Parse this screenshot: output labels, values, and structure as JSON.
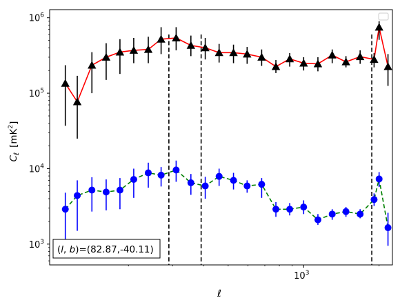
{
  "chart_data": {
    "type": "scatter",
    "xscale": "log",
    "yscale": "log",
    "xlim": [
      97,
      2260
    ],
    "ylim": [
      530,
      1280000
    ],
    "xlabel": "ℓ",
    "ylabel": "C_ℓ  [mK²]",
    "ylabel_parts": {
      "sym": "C",
      "sub": "ℓ",
      "unit": "[mK",
      "sup": "2",
      "close": "]"
    },
    "xticks_major": [
      {
        "value": 1000,
        "base": "10",
        "exp": "3"
      }
    ],
    "yticks_major": [
      {
        "value": 1000,
        "base": "10",
        "exp": "3"
      },
      {
        "value": 10000,
        "base": "10",
        "exp": "4"
      },
      {
        "value": 100000,
        "base": "10",
        "exp": "5"
      },
      {
        "value": 1000000,
        "base": "10",
        "exp": "6"
      }
    ],
    "legend": {
      "placement": "upper right",
      "entries": []
    },
    "annotation": {
      "text": "(l, b)=(82.87,-40.11)",
      "parts": {
        "open": "(",
        "l": "l",
        "comma": ", ",
        "b": "b",
        "rest": ")=(82.87,-40.11)"
      },
      "placement": "lower left"
    },
    "vlines": [
      {
        "x": 290,
        "y_top": 600000,
        "style": "dashed",
        "color": "#000000"
      },
      {
        "x": 390,
        "y_top": 600000,
        "style": "dashed",
        "color": "#000000"
      },
      {
        "x": 1870,
        "y_top": 600000,
        "style": "dashed",
        "color": "#000000"
      }
    ],
    "series": [
      {
        "marker": "triangle",
        "marker_color": "#000000",
        "line_color": "#ff0000",
        "line_style": "solid",
        "errbar_color": "#000000",
        "points": [
          {
            "x": 112,
            "y": 135000,
            "lo": 37000,
            "hi": 235000
          },
          {
            "x": 125,
            "y": 77000,
            "lo": 25000,
            "hi": 170000
          },
          {
            "x": 143,
            "y": 235000,
            "lo": 100000,
            "hi": 350000
          },
          {
            "x": 163,
            "y": 300000,
            "lo": 150000,
            "hi": 460000
          },
          {
            "x": 185,
            "y": 350000,
            "lo": 180000,
            "hi": 520000
          },
          {
            "x": 210,
            "y": 370000,
            "lo": 250000,
            "hi": 540000
          },
          {
            "x": 240,
            "y": 380000,
            "lo": 250000,
            "hi": 560000
          },
          {
            "x": 270,
            "y": 520000,
            "lo": 330000,
            "hi": 750000
          },
          {
            "x": 310,
            "y": 540000,
            "lo": 370000,
            "hi": 750000
          },
          {
            "x": 355,
            "y": 430000,
            "lo": 310000,
            "hi": 580000
          },
          {
            "x": 405,
            "y": 400000,
            "lo": 280000,
            "hi": 540000
          },
          {
            "x": 460,
            "y": 345000,
            "lo": 255000,
            "hi": 450000
          },
          {
            "x": 525,
            "y": 345000,
            "lo": 250000,
            "hi": 440000
          },
          {
            "x": 595,
            "y": 330000,
            "lo": 245000,
            "hi": 410000
          },
          {
            "x": 680,
            "y": 300000,
            "lo": 230000,
            "hi": 380000
          },
          {
            "x": 775,
            "y": 225000,
            "lo": 185000,
            "hi": 275000
          },
          {
            "x": 880,
            "y": 285000,
            "lo": 225000,
            "hi": 340000
          },
          {
            "x": 1000,
            "y": 250000,
            "lo": 200000,
            "hi": 300000
          },
          {
            "x": 1140,
            "y": 245000,
            "lo": 195000,
            "hi": 300000
          },
          {
            "x": 1300,
            "y": 320000,
            "lo": 250000,
            "hi": 380000
          },
          {
            "x": 1475,
            "y": 260000,
            "lo": 220000,
            "hi": 310000
          },
          {
            "x": 1680,
            "y": 305000,
            "lo": 245000,
            "hi": 370000
          },
          {
            "x": 1910,
            "y": 280000,
            "lo": 220000,
            "hi": 340000
          },
          {
            "x": 2000,
            "y": 750000,
            "lo": 510000,
            "hi": 900000
          },
          {
            "x": 2170,
            "y": 225000,
            "lo": 125000,
            "hi": 330000
          }
        ]
      },
      {
        "marker": "circle",
        "marker_color": "#0000ff",
        "line_color": "#008000",
        "line_style": "dashed",
        "errbar_color": "#0000ff",
        "points": [
          {
            "x": 112,
            "y": 2900,
            "lo": 1000,
            "hi": 4800
          },
          {
            "x": 125,
            "y": 4400,
            "lo": 1500,
            "hi": 7000
          },
          {
            "x": 143,
            "y": 5200,
            "lo": 2700,
            "hi": 7700
          },
          {
            "x": 163,
            "y": 4900,
            "lo": 2800,
            "hi": 7200
          },
          {
            "x": 185,
            "y": 5200,
            "lo": 2900,
            "hi": 7500
          },
          {
            "x": 210,
            "y": 7200,
            "lo": 4100,
            "hi": 10000
          },
          {
            "x": 240,
            "y": 8800,
            "lo": 5600,
            "hi": 12000
          },
          {
            "x": 270,
            "y": 8200,
            "lo": 5800,
            "hi": 10500
          },
          {
            "x": 310,
            "y": 9600,
            "lo": 6700,
            "hi": 12800
          },
          {
            "x": 355,
            "y": 6500,
            "lo": 4500,
            "hi": 8500
          },
          {
            "x": 405,
            "y": 5900,
            "lo": 4000,
            "hi": 7800
          },
          {
            "x": 460,
            "y": 7900,
            "lo": 5900,
            "hi": 10000
          },
          {
            "x": 525,
            "y": 7000,
            "lo": 5300,
            "hi": 8800
          },
          {
            "x": 595,
            "y": 5900,
            "lo": 4800,
            "hi": 7000
          },
          {
            "x": 680,
            "y": 6200,
            "lo": 4100,
            "hi": 7500
          },
          {
            "x": 775,
            "y": 2900,
            "lo": 2300,
            "hi": 3600
          },
          {
            "x": 880,
            "y": 2900,
            "lo": 2400,
            "hi": 3500
          },
          {
            "x": 1000,
            "y": 3100,
            "lo": 2500,
            "hi": 3800
          },
          {
            "x": 1140,
            "y": 2100,
            "lo": 1800,
            "hi": 2500
          },
          {
            "x": 1300,
            "y": 2500,
            "lo": 2100,
            "hi": 2900
          },
          {
            "x": 1475,
            "y": 2700,
            "lo": 2300,
            "hi": 3100
          },
          {
            "x": 1680,
            "y": 2500,
            "lo": 2200,
            "hi": 2900
          },
          {
            "x": 1910,
            "y": 3900,
            "lo": 3200,
            "hi": 4700
          },
          {
            "x": 2000,
            "y": 7300,
            "lo": 5700,
            "hi": 9000
          },
          {
            "x": 2170,
            "y": 1650,
            "lo": 950,
            "hi": 2600
          }
        ]
      }
    ]
  }
}
